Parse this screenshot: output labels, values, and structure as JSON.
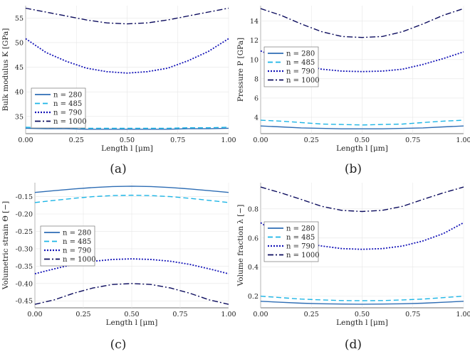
{
  "series_styles": [
    {
      "label": "n = 280",
      "color": "#2e6db4",
      "dash": "none",
      "width": 1.4
    },
    {
      "label": "n = 485",
      "color": "#1cb5e6",
      "dash": "7,4",
      "width": 1.4
    },
    {
      "label": "n = 790",
      "color": "#1515b8",
      "dash": "2,2",
      "width": 1.8
    },
    {
      "label": "n = 1000",
      "color": "#0c0c5e",
      "dash": "8,3,2,3",
      "width": 1.4
    }
  ],
  "chart_data": [
    {
      "type": "line",
      "caption": "(a)",
      "xlabel": "Length l [μm]",
      "ylabel": "Bulk modulus K [GPa]",
      "xlim": [
        0,
        1
      ],
      "ylim": [
        31.5,
        57.5
      ],
      "xticks": [
        "0.00",
        "0.25",
        "0.50",
        "0.75",
        "1.00"
      ],
      "yticks": [
        35,
        40,
        45,
        50,
        55
      ],
      "legend": "bottom-left",
      "x": [
        0.0,
        0.1,
        0.2,
        0.3,
        0.4,
        0.5,
        0.6,
        0.7,
        0.8,
        0.9,
        1.0
      ],
      "series": [
        {
          "name": "n = 280",
          "values": [
            32.6,
            32.5,
            32.5,
            32.4,
            32.4,
            32.4,
            32.4,
            32.4,
            32.5,
            32.5,
            32.6
          ]
        },
        {
          "name": "n = 485",
          "values": [
            32.8,
            32.7,
            32.7,
            32.6,
            32.6,
            32.6,
            32.6,
            32.6,
            32.7,
            32.7,
            32.8
          ]
        },
        {
          "name": "n = 790",
          "values": [
            50.8,
            48.0,
            46.2,
            44.8,
            44.1,
            43.8,
            44.1,
            44.8,
            46.3,
            48.2,
            50.8
          ]
        },
        {
          "name": "n = 1000",
          "values": [
            57.0,
            56.2,
            55.4,
            54.6,
            54.0,
            53.8,
            54.0,
            54.6,
            55.4,
            56.2,
            57.0
          ]
        }
      ]
    },
    {
      "type": "line",
      "caption": "(b)",
      "xlabel": "Length l [μm]",
      "ylabel": "Pressure P [GPa]",
      "xlim": [
        0,
        1
      ],
      "ylim": [
        2.3,
        15.6
      ],
      "xticks": [
        "0.00",
        "0.25",
        "0.50",
        "0.75",
        "1.00"
      ],
      "yticks": [
        4,
        6,
        8,
        10,
        12,
        14
      ],
      "legend": "center-left",
      "x": [
        0.0,
        0.1,
        0.2,
        0.3,
        0.4,
        0.5,
        0.6,
        0.7,
        0.8,
        0.9,
        1.0
      ],
      "series": [
        {
          "name": "n = 280",
          "values": [
            3.1,
            3.0,
            2.9,
            2.85,
            2.8,
            2.8,
            2.8,
            2.85,
            2.9,
            3.0,
            3.1
          ]
        },
        {
          "name": "n = 485",
          "values": [
            3.7,
            3.6,
            3.45,
            3.3,
            3.25,
            3.2,
            3.25,
            3.3,
            3.45,
            3.6,
            3.7
          ]
        },
        {
          "name": "n = 790",
          "values": [
            10.9,
            10.0,
            9.5,
            9.0,
            8.8,
            8.75,
            8.8,
            9.0,
            9.5,
            10.1,
            10.8
          ]
        },
        {
          "name": "n = 1000",
          "values": [
            15.3,
            14.6,
            13.7,
            12.9,
            12.4,
            12.3,
            12.4,
            12.9,
            13.7,
            14.6,
            15.3
          ]
        }
      ]
    },
    {
      "type": "line",
      "caption": "(c)",
      "xlabel": "Length l [μm]",
      "ylabel": "Volumetric strain Θ [−]",
      "xlim": [
        0,
        1
      ],
      "ylim": [
        -0.47,
        -0.11
      ],
      "xticks": [
        "0.00",
        "0.25",
        "0.50",
        "0.75",
        "1.00"
      ],
      "yticks": [
        "-0.15",
        "-0.20",
        "-0.25",
        "-0.30",
        "-0.35",
        "-0.40",
        "-0.45"
      ],
      "yticks_values": [
        -0.15,
        -0.2,
        -0.25,
        -0.3,
        -0.35,
        -0.4,
        -0.45
      ],
      "legend": "center-left",
      "x": [
        0.0,
        0.1,
        0.2,
        0.3,
        0.4,
        0.5,
        0.6,
        0.7,
        0.8,
        0.9,
        1.0
      ],
      "series": [
        {
          "name": "n = 280",
          "values": [
            -0.138,
            -0.133,
            -0.128,
            -0.124,
            -0.121,
            -0.12,
            -0.121,
            -0.124,
            -0.128,
            -0.133,
            -0.138
          ]
        },
        {
          "name": "n = 485",
          "values": [
            -0.167,
            -0.161,
            -0.155,
            -0.15,
            -0.147,
            -0.146,
            -0.147,
            -0.15,
            -0.155,
            -0.161,
            -0.167
          ]
        },
        {
          "name": "n = 790",
          "values": [
            -0.372,
            -0.358,
            -0.345,
            -0.336,
            -0.331,
            -0.329,
            -0.331,
            -0.336,
            -0.345,
            -0.358,
            -0.372
          ]
        },
        {
          "name": "n = 1000",
          "values": [
            -0.46,
            -0.447,
            -0.428,
            -0.413,
            -0.403,
            -0.4,
            -0.403,
            -0.413,
            -0.428,
            -0.447,
            -0.46
          ]
        }
      ]
    },
    {
      "type": "line",
      "caption": "(d)",
      "xlabel": "Length l [μm]",
      "ylabel": "Volume fraction λ [−]",
      "xlim": [
        0,
        1
      ],
      "ylim": [
        0.12,
        0.98
      ],
      "xticks": [
        "0.00",
        "0.25",
        "0.50",
        "0.75",
        "1.00"
      ],
      "yticks": [
        "0.2",
        "0.4",
        "0.6",
        "0.8"
      ],
      "yticks_values": [
        0.2,
        0.4,
        0.6,
        0.8
      ],
      "legend": "center-left",
      "x": [
        0.0,
        0.1,
        0.2,
        0.3,
        0.4,
        0.5,
        0.6,
        0.7,
        0.8,
        0.9,
        1.0
      ],
      "series": [
        {
          "name": "n = 280",
          "values": [
            0.165,
            0.158,
            0.152,
            0.148,
            0.146,
            0.145,
            0.146,
            0.148,
            0.152,
            0.158,
            0.165
          ]
        },
        {
          "name": "n = 485",
          "values": [
            0.2,
            0.19,
            0.18,
            0.174,
            0.17,
            0.169,
            0.17,
            0.174,
            0.18,
            0.19,
            0.2
          ]
        },
        {
          "name": "n = 790",
          "values": [
            0.705,
            0.61,
            0.57,
            0.545,
            0.527,
            0.522,
            0.527,
            0.545,
            0.58,
            0.63,
            0.705
          ]
        },
        {
          "name": "n = 1000",
          "values": [
            0.95,
            0.91,
            0.865,
            0.818,
            0.79,
            0.782,
            0.79,
            0.818,
            0.865,
            0.91,
            0.95
          ]
        }
      ]
    }
  ]
}
